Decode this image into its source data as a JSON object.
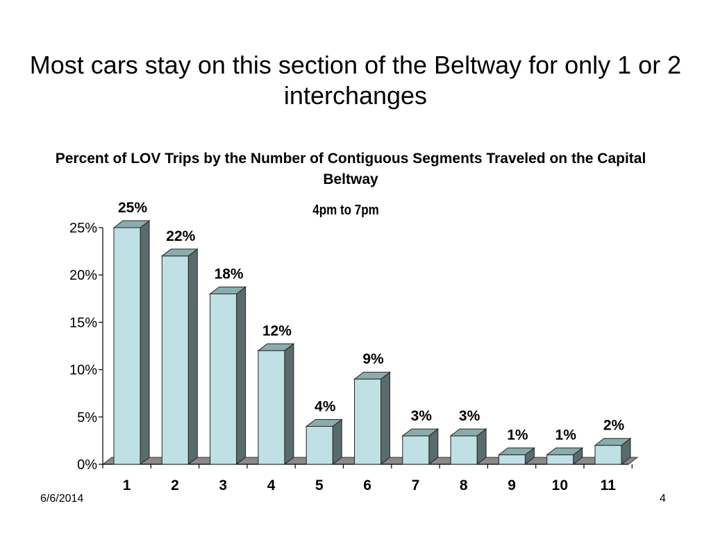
{
  "slide": {
    "title": "Most cars stay on this section of the Beltway for only 1 or 2 interchanges",
    "date": "6/6/2014",
    "page_number": "4"
  },
  "chart_data": {
    "type": "bar",
    "title": "Percent of LOV Trips by the Number of Contiguous Segments Traveled on the Capital Beltway",
    "subtitle": "4pm to 7pm",
    "categories": [
      "1",
      "2",
      "3",
      "4",
      "5",
      "6",
      "7",
      "8",
      "9",
      "10",
      "11"
    ],
    "values": [
      25,
      22,
      18,
      12,
      4,
      9,
      3,
      3,
      1,
      1,
      2
    ],
    "data_labels": [
      "25%",
      "22%",
      "18%",
      "12%",
      "4%",
      "9%",
      "3%",
      "3%",
      "1%",
      "1%",
      "2%"
    ],
    "yticks": [
      "0%",
      "5%",
      "10%",
      "15%",
      "20%",
      "25%"
    ],
    "ylim": [
      0,
      25
    ],
    "grid": false,
    "legend": "none",
    "xlabel": "",
    "ylabel": "",
    "colors": {
      "bar_front": "#bfe0e4",
      "bar_top": "#8aacac",
      "bar_side": "#5a6b6b",
      "floor": "#8a8a8a"
    }
  }
}
